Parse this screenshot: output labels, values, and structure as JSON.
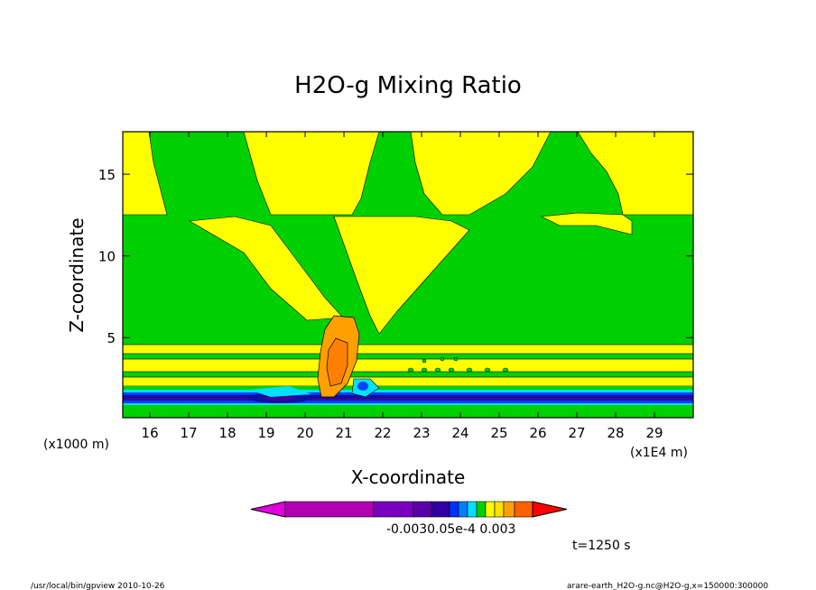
{
  "chart_data": {
    "type": "heatmap",
    "title": "H2O-g Mixing Ratio",
    "xlabel": "X-coordinate",
    "ylabel": "Z-coordinate",
    "x_unit_left": "(x1000 m)",
    "x_unit_right": "(x1E4 m)",
    "xlim": [
      15.3,
      30.0
    ],
    "ylim": [
      0.1,
      17.6
    ],
    "x_ticks": [
      "16",
      "17",
      "18",
      "19",
      "20",
      "21",
      "22",
      "23",
      "24",
      "25",
      "26",
      "27",
      "28",
      "29"
    ],
    "y_ticks": [
      "5",
      "10",
      "15"
    ],
    "colorbar": {
      "colors": [
        "#e000e0",
        "#b000b0",
        "#7a00c0",
        "#5a00a8",
        "#3000a0",
        "#0030ff",
        "#0080ff",
        "#00e0ff",
        "#00d000",
        "#ffff00",
        "#ffe000",
        "#ffa000",
        "#ff6000",
        "#ff0000"
      ],
      "tick_labels": [
        "-0.003",
        "0.0",
        "5e-4",
        "0.003"
      ],
      "overlapping_label_text": "-0.0030.05e-4 0.003"
    },
    "fields": {
      "background": "#00d000",
      "yellow": "#ffff00",
      "orange_light": "#ffa000",
      "orange_dark": "#ff8000",
      "cyan": "#00e0ff",
      "blue": "#0040ff",
      "navy": "#1010a0",
      "purple": "#4000a0"
    }
  },
  "annotation_time": "t=1250 s",
  "footer": {
    "left": "/usr/local/bin/gpview  2010-10-26",
    "right": "arare-earth_H2O-g.nc@H2O-g,x=150000:300000"
  }
}
